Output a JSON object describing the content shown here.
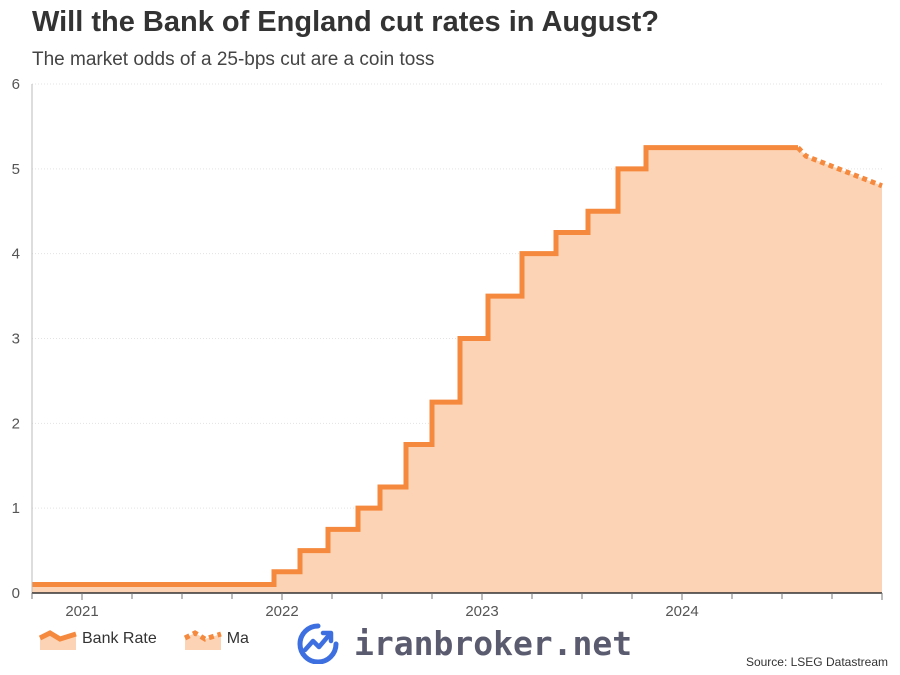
{
  "title": "Will the Bank of England cut rates in August?",
  "subtitle": "The market odds of a 25-bps cut are a coin toss",
  "source": "Source: LSEG Datastream",
  "watermark": "iranbroker.net",
  "colors": {
    "line": "#f5893d",
    "fill": "#fcd3b4",
    "grid": "#e3e3e3",
    "watermark": "#5b5b70",
    "watermark_icon": "#3d6fe0"
  },
  "chart_data": {
    "type": "area",
    "ylim": [
      0,
      6
    ],
    "xlim": [
      2020.75,
      2025.0
    ],
    "yticks": [
      0,
      1,
      2,
      3,
      4,
      5,
      6
    ],
    "xticks": [
      {
        "value": 2021,
        "label": "2021"
      },
      {
        "value": 2022,
        "label": "2022"
      },
      {
        "value": 2023,
        "label": "2023"
      },
      {
        "value": 2024,
        "label": "2024"
      }
    ],
    "grid": true,
    "legend_position": "bottom-left",
    "series": [
      {
        "name": "Bank Rate",
        "style": "solid",
        "points": [
          {
            "x": 2020.75,
            "y": 0.1
          },
          {
            "x": 2021.96,
            "y": 0.1
          },
          {
            "x": 2021.96,
            "y": 0.25
          },
          {
            "x": 2022.09,
            "y": 0.25
          },
          {
            "x": 2022.09,
            "y": 0.5
          },
          {
            "x": 2022.23,
            "y": 0.5
          },
          {
            "x": 2022.23,
            "y": 0.75
          },
          {
            "x": 2022.38,
            "y": 0.75
          },
          {
            "x": 2022.38,
            "y": 1.0
          },
          {
            "x": 2022.49,
            "y": 1.0
          },
          {
            "x": 2022.49,
            "y": 1.25
          },
          {
            "x": 2022.62,
            "y": 1.25
          },
          {
            "x": 2022.62,
            "y": 1.75
          },
          {
            "x": 2022.75,
            "y": 1.75
          },
          {
            "x": 2022.75,
            "y": 2.25
          },
          {
            "x": 2022.89,
            "y": 2.25
          },
          {
            "x": 2022.89,
            "y": 3.0
          },
          {
            "x": 2023.03,
            "y": 3.0
          },
          {
            "x": 2023.03,
            "y": 3.5
          },
          {
            "x": 2023.2,
            "y": 3.5
          },
          {
            "x": 2023.2,
            "y": 4.0
          },
          {
            "x": 2023.37,
            "y": 4.0
          },
          {
            "x": 2023.37,
            "y": 4.25
          },
          {
            "x": 2023.53,
            "y": 4.25
          },
          {
            "x": 2023.53,
            "y": 4.5
          },
          {
            "x": 2023.68,
            "y": 4.5
          },
          {
            "x": 2023.68,
            "y": 5.0
          },
          {
            "x": 2023.82,
            "y": 5.0
          },
          {
            "x": 2023.82,
            "y": 5.25
          },
          {
            "x": 2024.58,
            "y": 5.25
          }
        ]
      },
      {
        "name": "Ma",
        "style": "dotted",
        "points": [
          {
            "x": 2024.58,
            "y": 5.25
          },
          {
            "x": 2024.62,
            "y": 5.15
          },
          {
            "x": 2025.0,
            "y": 4.8
          }
        ]
      }
    ]
  }
}
